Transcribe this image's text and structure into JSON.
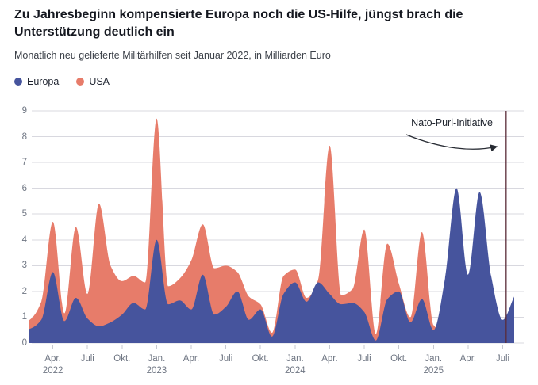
{
  "header": {
    "title": "Zu Jahresbeginn kompensierte Europa noch die US-Hilfe, jüngst brach die Unterstützung deutlich ein",
    "subtitle": "Monatlich neu gelieferte Militärhilfen seit Januar 2022, in Milliarden Euro"
  },
  "legend": {
    "items": [
      {
        "label": "Europa",
        "color": "#46549d"
      },
      {
        "label": "USA",
        "color": "#e77c6a"
      }
    ]
  },
  "annotation": {
    "label": "Nato-Purl-Initiative",
    "line_color": "#5a2b38",
    "arrow_color": "#272b33"
  },
  "colors": {
    "europa": "#46549d",
    "usa": "#e77c6a",
    "grid": "#d8d8df",
    "tick": "#c7c9d1",
    "axis_text": "#6f7683"
  },
  "chart_data": {
    "type": "area",
    "overlapping": true,
    "title": "Zu Jahresbeginn kompensierte Europa noch die US-Hilfe, jüngst brach die Unterstützung deutlich ein",
    "subtitle": "Monatlich neu gelieferte Militärhilfen seit Januar 2022, in Milliarden Euro",
    "unit": "Milliarden Euro",
    "grid": true,
    "legend_position": "top-left",
    "ylim": [
      0,
      9
    ],
    "y_ticks": [
      0,
      1,
      2,
      3,
      4,
      5,
      6,
      7,
      8,
      9
    ],
    "x": [
      "Jan. 2022",
      "Feb. 2022",
      "März 2022",
      "Apr. 2022",
      "Mai 2022",
      "Juni 2022",
      "Juli 2022",
      "Aug. 2022",
      "Sep. 2022",
      "Okt. 2022",
      "Nov. 2022",
      "Dez. 2022",
      "Jan. 2023",
      "Feb. 2023",
      "März 2023",
      "Apr. 2023",
      "Mai 2023",
      "Juni 2023",
      "Juli 2023",
      "Aug. 2023",
      "Sep. 2023",
      "Okt. 2023",
      "Nov. 2023",
      "Dez. 2023",
      "Jan. 2024",
      "Feb. 2024",
      "März 2024",
      "Apr. 2024",
      "Mai 2024",
      "Juni 2024",
      "Juli 2024",
      "Aug. 2024",
      "Sep. 2024",
      "Okt. 2024",
      "Nov. 2024",
      "Dez. 2024",
      "Jan. 2025",
      "Feb. 2025",
      "März 2025",
      "Apr. 2025",
      "Mai 2025",
      "Juni 2025",
      "Juli 2025",
      "Aug. 2025"
    ],
    "series": [
      {
        "name": "USA",
        "color": "#e77c6a",
        "values": [
          0.7,
          0.9,
          1.6,
          4.7,
          1.15,
          4.5,
          1.9,
          5.4,
          3.0,
          2.4,
          2.6,
          2.35,
          8.7,
          2.2,
          2.5,
          3.2,
          4.6,
          2.9,
          3.0,
          2.75,
          1.8,
          1.5,
          0.4,
          2.6,
          2.85,
          1.75,
          2.45,
          7.65,
          1.85,
          2.1,
          4.4,
          0.35,
          3.85,
          2.3,
          1.0,
          4.3,
          0.7,
          0.4,
          0.3,
          0.25,
          0.3,
          0.25,
          0.3,
          0.45
        ]
      },
      {
        "name": "Europa",
        "color": "#46549d",
        "values": [
          0.45,
          0.55,
          0.9,
          2.75,
          0.85,
          1.75,
          0.95,
          0.65,
          0.8,
          1.1,
          1.55,
          1.3,
          4.0,
          1.5,
          1.65,
          1.3,
          2.65,
          1.1,
          1.4,
          2.0,
          0.9,
          1.3,
          0.25,
          1.9,
          2.35,
          1.6,
          2.35,
          1.9,
          1.5,
          1.55,
          1.2,
          0.1,
          1.7,
          2.0,
          0.8,
          1.7,
          0.5,
          2.5,
          6.0,
          2.65,
          5.85,
          2.6,
          0.9,
          1.8
        ]
      }
    ],
    "x_ticks": [
      {
        "month_index": 3,
        "label": "Apr.",
        "year": "2022"
      },
      {
        "month_index": 6,
        "label": "Juli"
      },
      {
        "month_index": 9,
        "label": "Okt."
      },
      {
        "month_index": 12,
        "label": "Jan.",
        "year": "2023"
      },
      {
        "month_index": 15,
        "label": "Apr."
      },
      {
        "month_index": 18,
        "label": "Juli"
      },
      {
        "month_index": 21,
        "label": "Okt."
      },
      {
        "month_index": 24,
        "label": "Jan.",
        "year": "2024"
      },
      {
        "month_index": 27,
        "label": "Apr."
      },
      {
        "month_index": 30,
        "label": "Juli"
      },
      {
        "month_index": 33,
        "label": "Okt."
      },
      {
        "month_index": 36,
        "label": "Jan.",
        "year": "2025"
      },
      {
        "month_index": 39,
        "label": "Apr."
      },
      {
        "month_index": 42,
        "label": "Juli"
      }
    ],
    "event_line": {
      "label": "Nato-Purl-Initiative",
      "month_index": 42.3
    }
  }
}
